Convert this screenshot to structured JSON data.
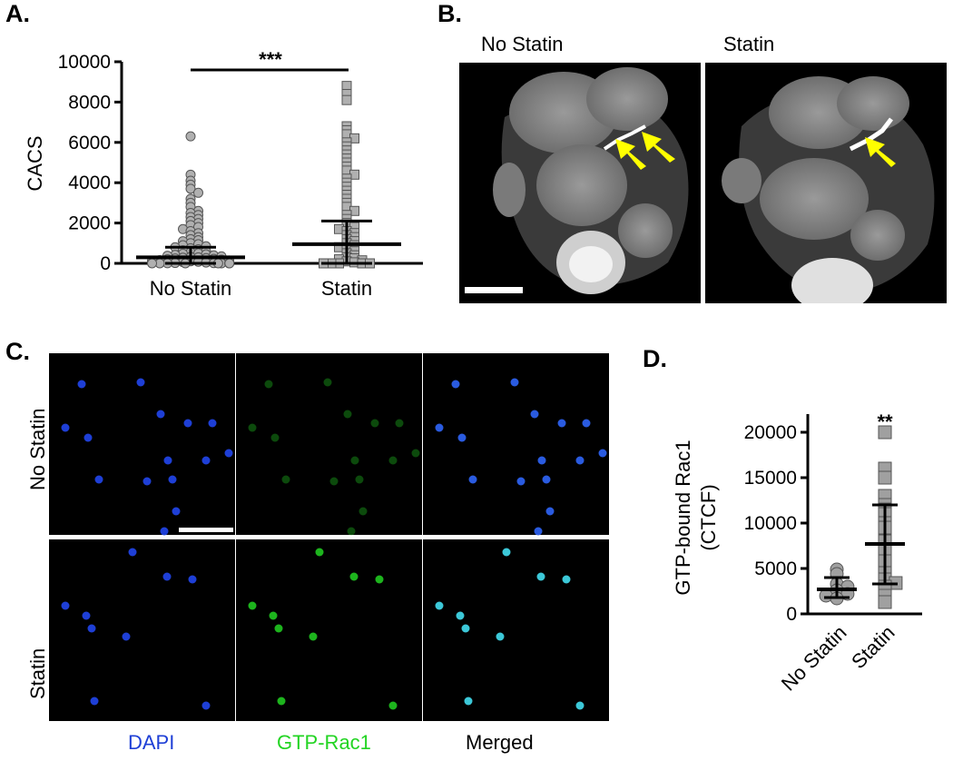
{
  "panels": {
    "A": {
      "label": "A.",
      "chart_data": {
        "type": "scatter",
        "categories": [
          "No Statin",
          "Statin"
        ],
        "ylabel": "CACS",
        "xlabel": "",
        "ylim": [
          0,
          10000
        ],
        "yticks": [
          0,
          2000,
          4000,
          6000,
          8000,
          10000
        ],
        "significance": "***",
        "summary": [
          {
            "name": "No Statin",
            "mean": 300,
            "sd_upper": 800,
            "sd_lower": 0
          },
          {
            "name": "Statin",
            "mean": 950,
            "sd_upper": 2100,
            "sd_lower": 0
          }
        ],
        "series": [
          {
            "name": "No Statin",
            "marker": "circle",
            "color": "#b0b0b0",
            "values": [
              6300,
              4400,
              4100,
              3900,
              3700,
              3500,
              3200,
              3000,
              2800,
              2600,
              2500,
              2400,
              2300,
              2200,
              2100,
              2000,
              1900,
              1800,
              1700,
              1600,
              1500,
              1400,
              1300,
              1200,
              1150,
              1100,
              1000,
              950,
              900,
              850,
              800,
              750,
              700,
              650,
              600,
              550,
              500,
              480,
              450,
              420,
              400,
              380,
              350,
              320,
              300,
              280,
              260,
              240,
              220,
              200,
              180,
              160,
              140,
              120,
              100,
              80,
              60,
              40,
              20,
              10,
              5,
              0,
              0,
              0,
              0,
              0,
              0,
              0
            ]
          },
          {
            "name": "Statin",
            "marker": "square",
            "color": "#b0b0b0",
            "values": [
              8800,
              8400,
              8100,
              6800,
              6600,
              6400,
              6200,
              6000,
              5800,
              5600,
              5400,
              5200,
              5000,
              4800,
              4600,
              4400,
              4200,
              4000,
              3800,
              3600,
              3400,
              3200,
              3000,
              2800,
              2600,
              2400,
              2200,
              2000,
              1900,
              1800,
              1700,
              1600,
              1500,
              1400,
              1300,
              1200,
              1100,
              1000,
              900,
              800,
              700,
              600,
              500,
              400,
              300,
              250,
              200,
              150,
              100,
              50,
              0,
              0,
              0,
              0,
              0
            ]
          }
        ]
      }
    },
    "B": {
      "label": "B.",
      "left_title": "No Statin",
      "right_title": "Statin"
    },
    "C": {
      "label": "C.",
      "row_labels": [
        "No Statin",
        "Statin"
      ],
      "col_labels": [
        "DAPI",
        "GTP-Rac1",
        "Merged"
      ],
      "col_colors": [
        "#1e3fd6",
        "#22d422",
        "#000000"
      ]
    },
    "D": {
      "label": "D.",
      "chart_data": {
        "type": "scatter",
        "categories": [
          "No Statin",
          "Statin"
        ],
        "ylabel": "GTP-bound Rac1\n(CTCF)",
        "ylabel_lines": [
          "GTP-bound Rac1",
          "(CTCF)"
        ],
        "xlabel": "",
        "ylim": [
          0,
          22000
        ],
        "yticks": [
          0,
          5000,
          10000,
          15000,
          20000
        ],
        "significance": "**",
        "summary": [
          {
            "name": "No Statin",
            "mean": 2700,
            "sd_upper": 4000,
            "sd_lower": 1800
          },
          {
            "name": "Statin",
            "mean": 7700,
            "sd_upper": 12000,
            "sd_lower": 3300
          }
        ],
        "series": [
          {
            "name": "No Statin",
            "marker": "circle",
            "color": "#a0a0a0",
            "values": [
              4900,
              4400,
              3300,
              3000,
              2600,
              2200,
              2000,
              1700
            ]
          },
          {
            "name": "Statin",
            "marker": "square",
            "color": "#a0a0a0",
            "values": [
              20000,
              16000,
              15000,
              13000,
              12000,
              11500,
              11000,
              10000,
              9500,
              8000,
              7000,
              5800,
              4500,
              3800,
              3400,
              3000,
              2000,
              1300
            ]
          }
        ]
      }
    }
  }
}
